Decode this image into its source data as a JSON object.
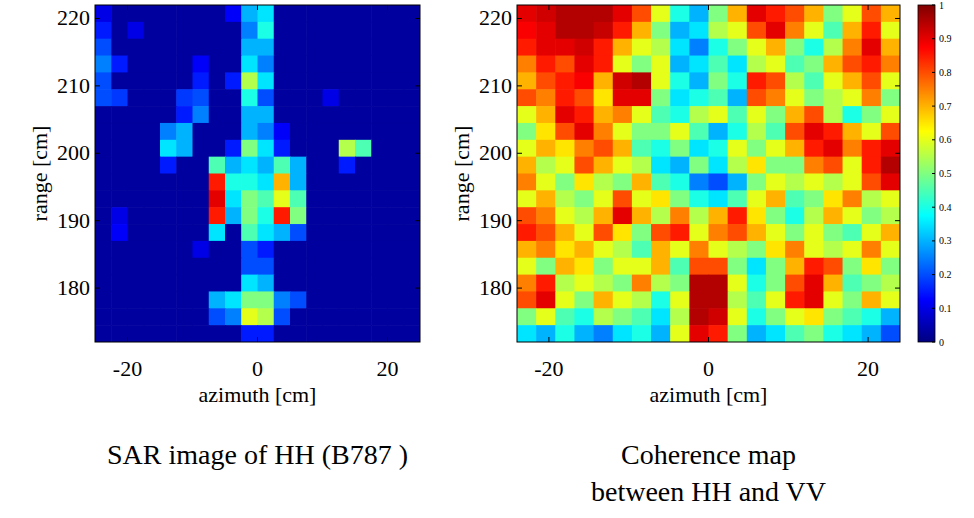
{
  "chart_data": [
    {
      "type": "heatmap",
      "title": "SAR image of HH (B787 )",
      "xlabel": "azimuth [cm]",
      "ylabel": "range [cm]",
      "xlim": [
        -25,
        25
      ],
      "ylim": [
        172,
        222
      ],
      "xticks": [
        -20,
        0,
        20
      ],
      "yticks": [
        180,
        190,
        200,
        210,
        220
      ],
      "z_range": [
        0,
        1
      ],
      "x": [
        -23.75,
        -21.25,
        -18.75,
        -16.25,
        -13.75,
        -11.25,
        -8.75,
        -6.25,
        -3.75,
        -1.25,
        1.25,
        3.75,
        6.25,
        8.75,
        11.25,
        13.75,
        16.25,
        18.75,
        21.25,
        23.75
      ],
      "y": [
        220.75,
        218.25,
        215.75,
        213.25,
        210.75,
        208.25,
        205.75,
        203.25,
        200.75,
        198.25,
        195.75,
        193.25,
        190.75,
        188.25,
        185.75,
        183.25,
        180.75,
        178.25,
        175.75,
        173.25
      ],
      "cells": [
        [
          0.1,
          0.03,
          0.03,
          0.03,
          0.03,
          0.03,
          0.03,
          0.03,
          0.12,
          0.3,
          0.35,
          0.03,
          0.03,
          0.03,
          0.03,
          0.03,
          0.03,
          0.03,
          0.03,
          0.03
        ],
        [
          0.15,
          0.03,
          0.1,
          0.03,
          0.03,
          0.03,
          0.03,
          0.03,
          0.03,
          0.25,
          0.4,
          0.03,
          0.03,
          0.03,
          0.03,
          0.03,
          0.03,
          0.03,
          0.03,
          0.03
        ],
        [
          0.2,
          0.03,
          0.03,
          0.03,
          0.03,
          0.03,
          0.03,
          0.03,
          0.03,
          0.3,
          0.3,
          0.03,
          0.03,
          0.03,
          0.03,
          0.03,
          0.03,
          0.03,
          0.03,
          0.03
        ],
        [
          0.25,
          0.15,
          0.03,
          0.03,
          0.03,
          0.03,
          0.12,
          0.03,
          0.03,
          0.35,
          0.25,
          0.03,
          0.03,
          0.03,
          0.03,
          0.03,
          0.03,
          0.03,
          0.03,
          0.03
        ],
        [
          0.2,
          0.03,
          0.03,
          0.03,
          0.03,
          0.03,
          0.15,
          0.03,
          0.15,
          0.55,
          0.35,
          0.03,
          0.03,
          0.03,
          0.03,
          0.03,
          0.03,
          0.03,
          0.03,
          0.03
        ],
        [
          0.2,
          0.18,
          0.03,
          0.03,
          0.03,
          0.18,
          0.2,
          0.03,
          0.03,
          0.4,
          0.2,
          0.03,
          0.03,
          0.03,
          0.1,
          0.03,
          0.03,
          0.03,
          0.03,
          0.03
        ],
        [
          0.03,
          0.03,
          0.03,
          0.03,
          0.03,
          0.15,
          0.25,
          0.03,
          0.03,
          0.3,
          0.3,
          0.03,
          0.03,
          0.03,
          0.03,
          0.03,
          0.03,
          0.03,
          0.03,
          0.03
        ],
        [
          0.03,
          0.03,
          0.03,
          0.03,
          0.25,
          0.3,
          0.03,
          0.03,
          0.03,
          0.3,
          0.25,
          0.12,
          0.03,
          0.03,
          0.03,
          0.03,
          0.03,
          0.03,
          0.03,
          0.03
        ],
        [
          0.03,
          0.03,
          0.03,
          0.03,
          0.35,
          0.3,
          0.03,
          0.03,
          0.15,
          0.5,
          0.35,
          0.15,
          0.03,
          0.03,
          0.03,
          0.55,
          0.45,
          0.03,
          0.03,
          0.03
        ],
        [
          0.03,
          0.03,
          0.03,
          0.03,
          0.15,
          0.03,
          0.03,
          0.45,
          0.3,
          0.35,
          0.3,
          0.45,
          0.3,
          0.03,
          0.03,
          0.15,
          0.03,
          0.03,
          0.03,
          0.03
        ],
        [
          0.03,
          0.03,
          0.03,
          0.03,
          0.03,
          0.03,
          0.03,
          0.85,
          0.4,
          0.4,
          0.35,
          0.7,
          0.3,
          0.03,
          0.03,
          0.03,
          0.03,
          0.03,
          0.03,
          0.03
        ],
        [
          0.03,
          0.03,
          0.03,
          0.03,
          0.03,
          0.03,
          0.03,
          0.9,
          0.35,
          0.5,
          0.45,
          0.6,
          0.45,
          0.03,
          0.03,
          0.03,
          0.03,
          0.03,
          0.03,
          0.03
        ],
        [
          0.03,
          0.1,
          0.03,
          0.03,
          0.03,
          0.03,
          0.03,
          0.85,
          0.3,
          0.5,
          0.4,
          0.85,
          0.5,
          0.03,
          0.03,
          0.03,
          0.03,
          0.03,
          0.03,
          0.03
        ],
        [
          0.03,
          0.12,
          0.03,
          0.03,
          0.03,
          0.03,
          0.03,
          0.35,
          0.03,
          0.45,
          0.35,
          0.3,
          0.2,
          0.03,
          0.03,
          0.03,
          0.03,
          0.03,
          0.03,
          0.03
        ],
        [
          0.03,
          0.03,
          0.03,
          0.03,
          0.03,
          0.03,
          0.1,
          0.03,
          0.03,
          0.2,
          0.15,
          0.03,
          0.03,
          0.03,
          0.03,
          0.03,
          0.03,
          0.03,
          0.03,
          0.03
        ],
        [
          0.03,
          0.03,
          0.03,
          0.03,
          0.03,
          0.03,
          0.03,
          0.03,
          0.03,
          0.2,
          0.2,
          0.03,
          0.03,
          0.03,
          0.03,
          0.03,
          0.03,
          0.03,
          0.03,
          0.03
        ],
        [
          0.03,
          0.03,
          0.03,
          0.03,
          0.03,
          0.03,
          0.03,
          0.03,
          0.03,
          0.35,
          0.3,
          0.03,
          0.03,
          0.03,
          0.03,
          0.03,
          0.03,
          0.03,
          0.03,
          0.03
        ],
        [
          0.03,
          0.03,
          0.03,
          0.03,
          0.03,
          0.03,
          0.03,
          0.3,
          0.35,
          0.5,
          0.5,
          0.25,
          0.2,
          0.03,
          0.03,
          0.03,
          0.03,
          0.03,
          0.03,
          0.03
        ],
        [
          0.03,
          0.03,
          0.03,
          0.03,
          0.03,
          0.03,
          0.03,
          0.2,
          0.25,
          0.6,
          0.55,
          0.2,
          0.03,
          0.03,
          0.03,
          0.03,
          0.03,
          0.03,
          0.03,
          0.03
        ],
        [
          0.03,
          0.03,
          0.03,
          0.03,
          0.03,
          0.03,
          0.03,
          0.03,
          0.03,
          0.15,
          0.15,
          0.03,
          0.03,
          0.03,
          0.03,
          0.03,
          0.03,
          0.03,
          0.03,
          0.03
        ]
      ]
    },
    {
      "type": "heatmap",
      "title": [
        "Coherence map",
        "between HH and VV"
      ],
      "xlabel": "azimuth [cm]",
      "ylabel": "range [cm]",
      "xlim": [
        -24,
        24
      ],
      "ylim": [
        172,
        222
      ],
      "xticks": [
        -20,
        0,
        20
      ],
      "yticks": [
        180,
        190,
        200,
        210,
        220
      ],
      "z_range": [
        0,
        1
      ],
      "z_ticks": [
        0,
        0.1,
        0.2,
        0.3,
        0.4,
        0.5,
        0.6,
        0.7,
        0.8,
        0.9,
        1
      ],
      "x": [
        -22.8,
        -20.4,
        -18,
        -15.6,
        -13.2,
        -10.8,
        -8.4,
        -6,
        -3.6,
        -1.2,
        1.2,
        3.6,
        6,
        8.4,
        10.8,
        13.2,
        15.6,
        18,
        20.4,
        22.8
      ],
      "y": [
        220.75,
        218.25,
        215.75,
        213.25,
        210.75,
        208.25,
        205.75,
        203.25,
        200.75,
        198.25,
        195.75,
        193.25,
        190.75,
        188.25,
        185.75,
        183.25,
        180.75,
        178.25,
        175.75,
        173.25
      ],
      "cells": [
        [
          0.9,
          0.92,
          0.95,
          0.95,
          0.95,
          0.9,
          0.8,
          0.6,
          0.4,
          0.3,
          0.5,
          0.7,
          0.9,
          0.85,
          0.8,
          0.7,
          0.5,
          0.6,
          0.8,
          0.7
        ],
        [
          0.88,
          0.9,
          0.95,
          0.95,
          0.93,
          0.85,
          0.7,
          0.5,
          0.3,
          0.35,
          0.55,
          0.6,
          0.8,
          0.9,
          0.75,
          0.6,
          0.45,
          0.7,
          0.85,
          0.6
        ],
        [
          0.85,
          0.9,
          0.9,
          0.92,
          0.85,
          0.7,
          0.6,
          0.55,
          0.35,
          0.25,
          0.4,
          0.5,
          0.6,
          0.7,
          0.5,
          0.4,
          0.55,
          0.75,
          0.9,
          0.7
        ],
        [
          0.75,
          0.85,
          0.8,
          0.9,
          0.85,
          0.6,
          0.5,
          0.6,
          0.3,
          0.35,
          0.45,
          0.35,
          0.55,
          0.6,
          0.45,
          0.5,
          0.7,
          0.8,
          0.85,
          0.75
        ],
        [
          0.7,
          0.8,
          0.85,
          0.88,
          0.7,
          0.92,
          0.95,
          0.6,
          0.4,
          0.3,
          0.5,
          0.4,
          0.85,
          0.8,
          0.55,
          0.45,
          0.6,
          0.7,
          0.8,
          0.6
        ],
        [
          0.8,
          0.75,
          0.85,
          0.8,
          0.65,
          0.9,
          0.9,
          0.5,
          0.35,
          0.4,
          0.45,
          0.3,
          0.8,
          0.75,
          0.6,
          0.5,
          0.55,
          0.6,
          0.75,
          0.5
        ],
        [
          0.6,
          0.7,
          0.9,
          0.85,
          0.7,
          0.75,
          0.6,
          0.45,
          0.4,
          0.55,
          0.6,
          0.45,
          0.6,
          0.5,
          0.7,
          0.8,
          0.55,
          0.4,
          0.5,
          0.6
        ],
        [
          0.5,
          0.65,
          0.8,
          0.9,
          0.75,
          0.6,
          0.5,
          0.5,
          0.6,
          0.45,
          0.3,
          0.4,
          0.55,
          0.45,
          0.8,
          0.9,
          0.85,
          0.7,
          0.6,
          0.8
        ],
        [
          0.6,
          0.7,
          0.65,
          0.75,
          0.8,
          0.7,
          0.45,
          0.4,
          0.5,
          0.35,
          0.4,
          0.6,
          0.5,
          0.6,
          0.7,
          0.85,
          0.9,
          0.75,
          0.85,
          0.9
        ],
        [
          0.7,
          0.55,
          0.6,
          0.8,
          0.7,
          0.6,
          0.55,
          0.35,
          0.3,
          0.5,
          0.35,
          0.55,
          0.65,
          0.5,
          0.5,
          0.75,
          0.8,
          0.6,
          0.85,
          0.95
        ],
        [
          0.75,
          0.6,
          0.5,
          0.65,
          0.55,
          0.5,
          0.7,
          0.45,
          0.4,
          0.25,
          0.2,
          0.3,
          0.5,
          0.6,
          0.55,
          0.6,
          0.55,
          0.6,
          0.8,
          0.9
        ],
        [
          0.6,
          0.7,
          0.55,
          0.5,
          0.6,
          0.8,
          0.6,
          0.65,
          0.5,
          0.4,
          0.35,
          0.45,
          0.6,
          0.7,
          0.45,
          0.5,
          0.65,
          0.75,
          0.55,
          0.6
        ],
        [
          0.8,
          0.75,
          0.6,
          0.55,
          0.7,
          0.9,
          0.7,
          0.55,
          0.75,
          0.55,
          0.7,
          0.85,
          0.65,
          0.5,
          0.4,
          0.55,
          0.7,
          0.6,
          0.5,
          0.55
        ],
        [
          0.85,
          0.8,
          0.7,
          0.6,
          0.8,
          0.65,
          0.5,
          0.8,
          0.85,
          0.6,
          0.75,
          0.8,
          0.7,
          0.6,
          0.5,
          0.6,
          0.5,
          0.45,
          0.6,
          0.7
        ],
        [
          0.7,
          0.75,
          0.65,
          0.7,
          0.6,
          0.55,
          0.45,
          0.7,
          0.6,
          0.75,
          0.6,
          0.55,
          0.5,
          0.65,
          0.75,
          0.6,
          0.55,
          0.6,
          0.75,
          0.6
        ],
        [
          0.6,
          0.5,
          0.7,
          0.65,
          0.5,
          0.6,
          0.6,
          0.7,
          0.45,
          0.8,
          0.8,
          0.5,
          0.35,
          0.5,
          0.7,
          0.85,
          0.8,
          0.5,
          0.65,
          0.5
        ],
        [
          0.75,
          0.85,
          0.55,
          0.6,
          0.55,
          0.5,
          0.75,
          0.55,
          0.5,
          0.95,
          0.95,
          0.6,
          0.4,
          0.5,
          0.8,
          0.9,
          0.7,
          0.45,
          0.5,
          0.55
        ],
        [
          0.8,
          0.9,
          0.6,
          0.5,
          0.7,
          0.6,
          0.55,
          0.4,
          0.6,
          0.95,
          0.95,
          0.55,
          0.45,
          0.6,
          0.85,
          0.9,
          0.6,
          0.5,
          0.7,
          0.6
        ],
        [
          0.5,
          0.6,
          0.45,
          0.4,
          0.55,
          0.5,
          0.45,
          0.35,
          0.55,
          0.95,
          0.92,
          0.6,
          0.4,
          0.5,
          0.6,
          0.65,
          0.5,
          0.45,
          0.4,
          0.3
        ],
        [
          0.35,
          0.3,
          0.4,
          0.3,
          0.25,
          0.35,
          0.4,
          0.3,
          0.6,
          0.9,
          0.85,
          0.5,
          0.3,
          0.35,
          0.45,
          0.5,
          0.4,
          0.35,
          0.3,
          0.2
        ]
      ]
    }
  ]
}
